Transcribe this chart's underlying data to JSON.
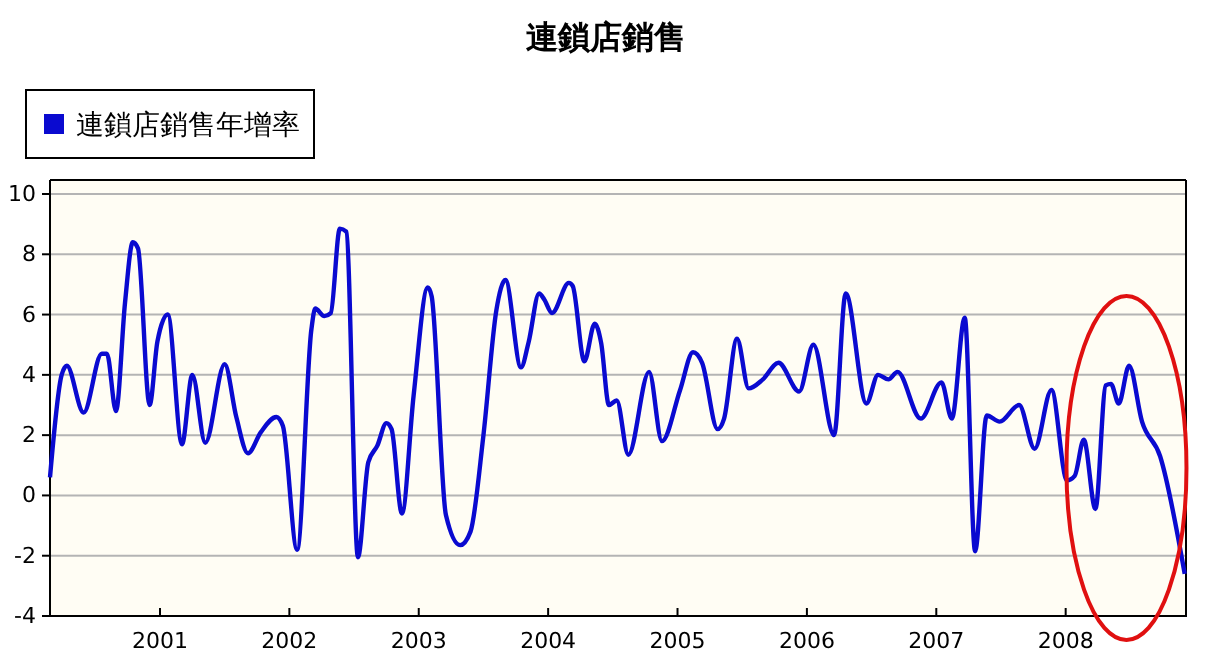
{
  "chart_data": {
    "type": "line",
    "title": "連鎖店銷售",
    "legend": "top left",
    "grid": "y",
    "marker": "none",
    "line_style": "solid",
    "xlim": [
      2000.15,
      2008.93
    ],
    "xticks": [
      2001,
      2002,
      2003,
      2004,
      2005,
      2006,
      2007,
      2008
    ],
    "ylim": [
      -4,
      10
    ],
    "yticks": [
      -4,
      -2,
      0,
      2,
      4,
      6,
      8,
      10
    ],
    "x": [
      2000.15,
      2000.24,
      2000.28,
      2000.41,
      2000.55,
      2000.59,
      2000.66,
      2000.73,
      2000.79,
      2000.83,
      2000.92,
      2000.98,
      2001.06,
      2001.17,
      2001.25,
      2001.35,
      2001.5,
      2001.59,
      2001.68,
      2001.78,
      2001.9,
      2001.95,
      2002.06,
      2002.17,
      2002.2,
      2002.27,
      2002.32,
      2002.39,
      2002.44,
      2002.53,
      2002.61,
      2002.68,
      2002.75,
      2002.79,
      2002.87,
      2002.96,
      2003.07,
      2003.1,
      2003.21,
      2003.32,
      2003.4,
      2003.5,
      2003.6,
      2003.67,
      2003.79,
      2003.85,
      2003.93,
      2003.97,
      2004.03,
      2004.16,
      2004.19,
      2004.28,
      2004.36,
      2004.41,
      2004.47,
      2004.53,
      2004.62,
      2004.78,
      2004.88,
      2005.02,
      2005.12,
      2005.19,
      2005.31,
      2005.36,
      2005.46,
      2005.55,
      2005.66,
      2005.78,
      2005.94,
      2006.05,
      2006.21,
      2006.3,
      2006.46,
      2006.55,
      2006.63,
      2006.7,
      2006.88,
      2007.04,
      2007.12,
      2007.22,
      2007.3,
      2007.39,
      2007.49,
      2007.64,
      2007.76,
      2007.89,
      2008.01,
      2008.07,
      2008.14,
      2008.23,
      2008.31,
      2008.35,
      2008.41,
      2008.49,
      2008.59,
      2008.73,
      2008.92
    ],
    "series": [
      {
        "name": "連鎖店銷售年增率",
        "color": "#0a0ad0",
        "values": [
          0.6,
          4.0,
          4.3,
          2.75,
          4.7,
          4.7,
          2.8,
          6.4,
          8.4,
          8.2,
          3.0,
          5.1,
          6.0,
          1.7,
          4.0,
          1.75,
          4.35,
          2.6,
          1.4,
          2.1,
          2.6,
          2.3,
          -1.8,
          5.5,
          6.2,
          5.95,
          6.05,
          8.85,
          8.75,
          -2.05,
          1.1,
          1.65,
          2.4,
          2.2,
          -0.6,
          3.3,
          6.9,
          6.6,
          -0.65,
          -1.65,
          -1.2,
          2.0,
          6.15,
          7.15,
          4.25,
          5.1,
          6.7,
          6.5,
          6.05,
          7.05,
          6.95,
          4.45,
          5.7,
          5.05,
          3.0,
          3.15,
          1.35,
          4.1,
          1.8,
          3.5,
          4.75,
          4.4,
          2.2,
          2.55,
          5.2,
          3.55,
          3.85,
          4.4,
          3.45,
          5.0,
          2.0,
          6.7,
          3.05,
          4.0,
          3.85,
          4.1,
          2.55,
          3.75,
          2.55,
          5.9,
          -1.85,
          2.65,
          2.45,
          3.0,
          1.55,
          3.5,
          0.5,
          0.65,
          1.85,
          -0.45,
          3.65,
          3.7,
          3.05,
          4.3,
          2.45,
          1.3,
          -2.6
        ]
      }
    ]
  }
}
